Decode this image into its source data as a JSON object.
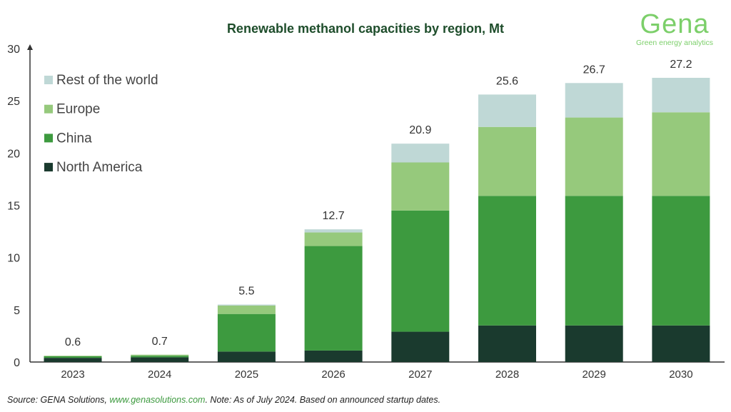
{
  "title": "Renewable methanol capacities by region, Mt",
  "logo": {
    "name": "Gena",
    "tagline": "Green energy analytics"
  },
  "source": {
    "prefix": "Source: GENA Solutions, ",
    "link": "www.genasolutions.com",
    "suffix": ". Note: As of July 2024. Based on announced startup dates."
  },
  "chart_data": {
    "type": "bar",
    "stacked": true,
    "title": "Renewable methanol capacities by region, Mt",
    "categories": [
      "2023",
      "2024",
      "2025",
      "2026",
      "2027",
      "2028",
      "2029",
      "2030"
    ],
    "series": [
      {
        "name": "North America",
        "color": "#1a3a2e",
        "values": [
          0.4,
          0.45,
          1.0,
          1.1,
          2.9,
          3.5,
          3.5,
          3.5
        ]
      },
      {
        "name": "China",
        "color": "#3d9a3f",
        "values": [
          0.15,
          0.15,
          3.6,
          10.0,
          11.6,
          12.4,
          12.4,
          12.4
        ]
      },
      {
        "name": "Europe",
        "color": "#96c97c",
        "values": [
          0.05,
          0.1,
          0.8,
          1.3,
          4.6,
          6.6,
          7.5,
          8.0
        ]
      },
      {
        "name": "Rest of the world",
        "color": "#bfd8d6",
        "values": [
          0.0,
          0.0,
          0.1,
          0.3,
          1.8,
          3.1,
          3.3,
          3.3
        ]
      }
    ],
    "totals": [
      "0.6",
      "0.7",
      "5.5",
      "12.7",
      "20.9",
      "25.6",
      "26.7",
      "27.2"
    ],
    "yticks": [
      "0",
      "5",
      "10",
      "15",
      "20",
      "25",
      "30"
    ],
    "ylim": [
      0,
      30
    ],
    "grid": false,
    "legend": "top-left"
  }
}
